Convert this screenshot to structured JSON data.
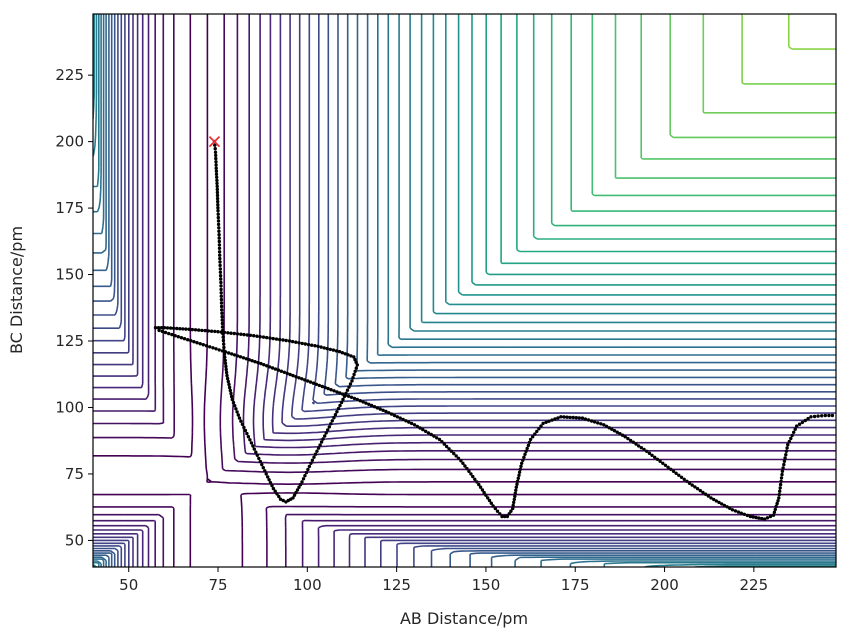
{
  "chart_data": {
    "type": "line",
    "title": "",
    "xlabel": "AB Distance/pm",
    "ylabel": "BC Distance/pm",
    "xlim": [
      40,
      248
    ],
    "ylim": [
      40,
      248
    ],
    "x_ticks": [
      50,
      75,
      100,
      125,
      150,
      175,
      200,
      225
    ],
    "y_ticks": [
      50,
      75,
      100,
      125,
      150,
      175,
      200,
      225
    ],
    "grid": false,
    "legend": "none",
    "colormap": "viridis",
    "contour_style": "Lennard-type potential energy surface contours (viridis, dark=low, yellow=high)",
    "start_marker": {
      "x": 74,
      "y": 200,
      "symbol": "x",
      "color": "#e8323a"
    },
    "trajectory": {
      "color": "#000000",
      "points": [
        [
          74,
          200
        ],
        [
          74.3,
          196
        ],
        [
          74.5,
          190
        ],
        [
          74.8,
          182
        ],
        [
          75,
          174
        ],
        [
          75.3,
          165
        ],
        [
          75.5,
          156
        ],
        [
          75.8,
          147
        ],
        [
          76,
          138
        ],
        [
          76.3,
          129
        ],
        [
          76.8,
          120
        ],
        [
          77.5,
          112
        ],
        [
          79,
          103
        ],
        [
          81,
          96
        ],
        [
          83.5,
          89
        ],
        [
          86,
          82
        ],
        [
          88.5,
          75
        ],
        [
          90.5,
          69.5
        ],
        [
          92.5,
          65.5
        ],
        [
          94,
          64.5
        ],
        [
          96,
          66
        ],
        [
          98.5,
          72
        ],
        [
          101,
          79
        ],
        [
          104,
          87
        ],
        [
          107,
          95
        ],
        [
          110,
          103
        ],
        [
          112.5,
          110
        ],
        [
          114,
          116
        ],
        [
          113,
          119
        ],
        [
          109,
          121
        ],
        [
          103,
          123
        ],
        [
          95,
          125
        ],
        [
          85,
          127
        ],
        [
          75,
          128.5
        ],
        [
          66,
          129.5
        ],
        [
          60,
          130
        ],
        [
          57.5,
          130
        ],
        [
          58.5,
          129
        ],
        [
          63,
          127
        ],
        [
          70,
          124
        ],
        [
          78,
          120.5
        ],
        [
          87,
          116.5
        ],
        [
          96,
          112
        ],
        [
          105,
          107.5
        ],
        [
          114,
          103
        ],
        [
          122,
          98.5
        ],
        [
          130,
          93.5
        ],
        [
          137,
          88
        ],
        [
          143,
          80
        ],
        [
          148,
          71
        ],
        [
          152,
          63
        ],
        [
          154.5,
          59
        ],
        [
          156,
          59
        ],
        [
          157.5,
          62
        ],
        [
          158.5,
          70
        ],
        [
          160,
          79
        ],
        [
          162.5,
          88
        ],
        [
          166,
          94
        ],
        [
          171,
          96.5
        ],
        [
          177,
          96
        ],
        [
          183,
          93.5
        ],
        [
          189,
          89
        ],
        [
          195,
          83.5
        ],
        [
          201,
          77.5
        ],
        [
          207,
          71.5
        ],
        [
          213,
          66
        ],
        [
          219,
          61.5
        ],
        [
          224,
          59
        ],
        [
          228,
          58
        ],
        [
          230.5,
          59.5
        ],
        [
          232,
          66
        ],
        [
          233,
          76
        ],
        [
          234.5,
          86
        ],
        [
          237,
          93
        ],
        [
          241,
          96.5
        ],
        [
          245,
          97
        ],
        [
          248,
          97
        ]
      ]
    }
  }
}
